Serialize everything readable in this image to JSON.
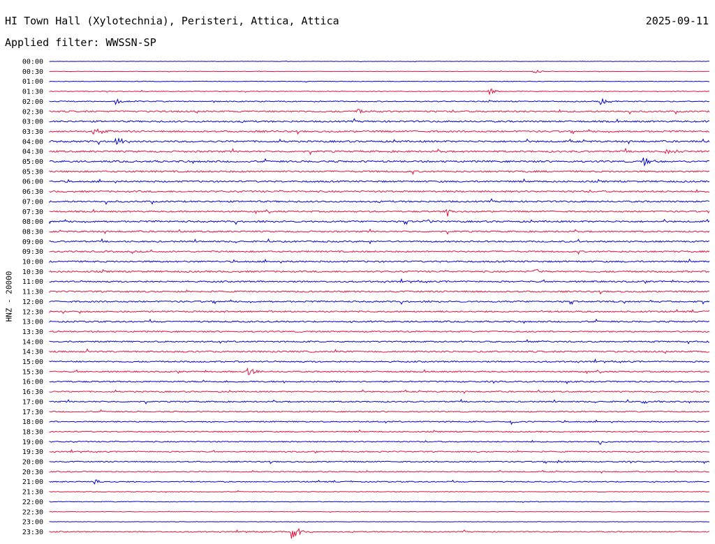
{
  "header": {
    "title": "HI Town Hall (Xylotechnia), Peristeri, Attica, Attica",
    "date": "2025-09-11",
    "filter": "Applied filter: WWSSN-SP"
  },
  "chart_data": {
    "type": "line",
    "ylabel": "HNZ - 20000",
    "tick_labels": [
      "00:00",
      "00:30",
      "01:00",
      "01:30",
      "02:00",
      "02:30",
      "03:00",
      "03:30",
      "04:00",
      "04:30",
      "05:00",
      "05:30",
      "06:00",
      "06:30",
      "07:00",
      "07:30",
      "08:00",
      "08:30",
      "09:00",
      "09:30",
      "10:00",
      "10:30",
      "11:00",
      "11:30",
      "12:00",
      "12:30",
      "13:00",
      "13:30",
      "14:00",
      "14:30",
      "15:00",
      "15:30",
      "16:00",
      "16:30",
      "17:00",
      "17:30",
      "18:00",
      "18:30",
      "19:00",
      "19:30",
      "20:00",
      "20:30",
      "21:00",
      "21:30",
      "22:00",
      "22:30",
      "23:00",
      "23:30"
    ],
    "colors": [
      "#0000cc",
      "#e0103c"
    ],
    "noise_level": [
      0.3,
      0.3,
      0.5,
      0.6,
      0.9,
      1.3,
      1.4,
      1.4,
      1.5,
      1.5,
      1.5,
      1.4,
      1.4,
      1.4,
      1.4,
      1.3,
      1.4,
      1.3,
      1.3,
      1.3,
      1.4,
      1.4,
      1.3,
      1.3,
      1.3,
      1.3,
      1.3,
      1.2,
      1.2,
      1.3,
      1.2,
      1.2,
      1.2,
      1.1,
      1.1,
      1.0,
      1.0,
      1.0,
      1.0,
      1.0,
      1.0,
      0.9,
      0.9,
      0.6,
      0.6,
      0.4,
      0.4,
      0.9
    ],
    "events": [
      {
        "row": 1,
        "minute": 22,
        "amp": 3.5
      },
      {
        "row": 3,
        "minute": 20,
        "amp": 4.5
      },
      {
        "row": 4,
        "minute": 3,
        "amp": 5
      },
      {
        "row": 4,
        "minute": 25,
        "amp": 5
      },
      {
        "row": 5,
        "minute": 14,
        "amp": 4
      },
      {
        "row": 7,
        "minute": 2,
        "amp": 6
      },
      {
        "row": 8,
        "minute": 3,
        "amp": 5
      },
      {
        "row": 9,
        "minute": 28,
        "amp": 5
      },
      {
        "row": 10,
        "minute": 27,
        "amp": 6
      },
      {
        "row": 15,
        "minute": 18,
        "amp": 5
      },
      {
        "row": 16,
        "minute": 17,
        "amp": 5
      },
      {
        "row": 21,
        "minute": 22,
        "amp": 5
      },
      {
        "row": 31,
        "minute": 9,
        "amp": 5
      },
      {
        "row": 34,
        "minute": 27,
        "amp": 4
      },
      {
        "row": 36,
        "minute": 21,
        "amp": 4
      },
      {
        "row": 38,
        "minute": 25,
        "amp": 4
      },
      {
        "row": 40,
        "minute": 23,
        "amp": 4
      },
      {
        "row": 42,
        "minute": 2,
        "amp": 4
      },
      {
        "row": 47,
        "minute": 11,
        "amp": 11
      }
    ]
  }
}
